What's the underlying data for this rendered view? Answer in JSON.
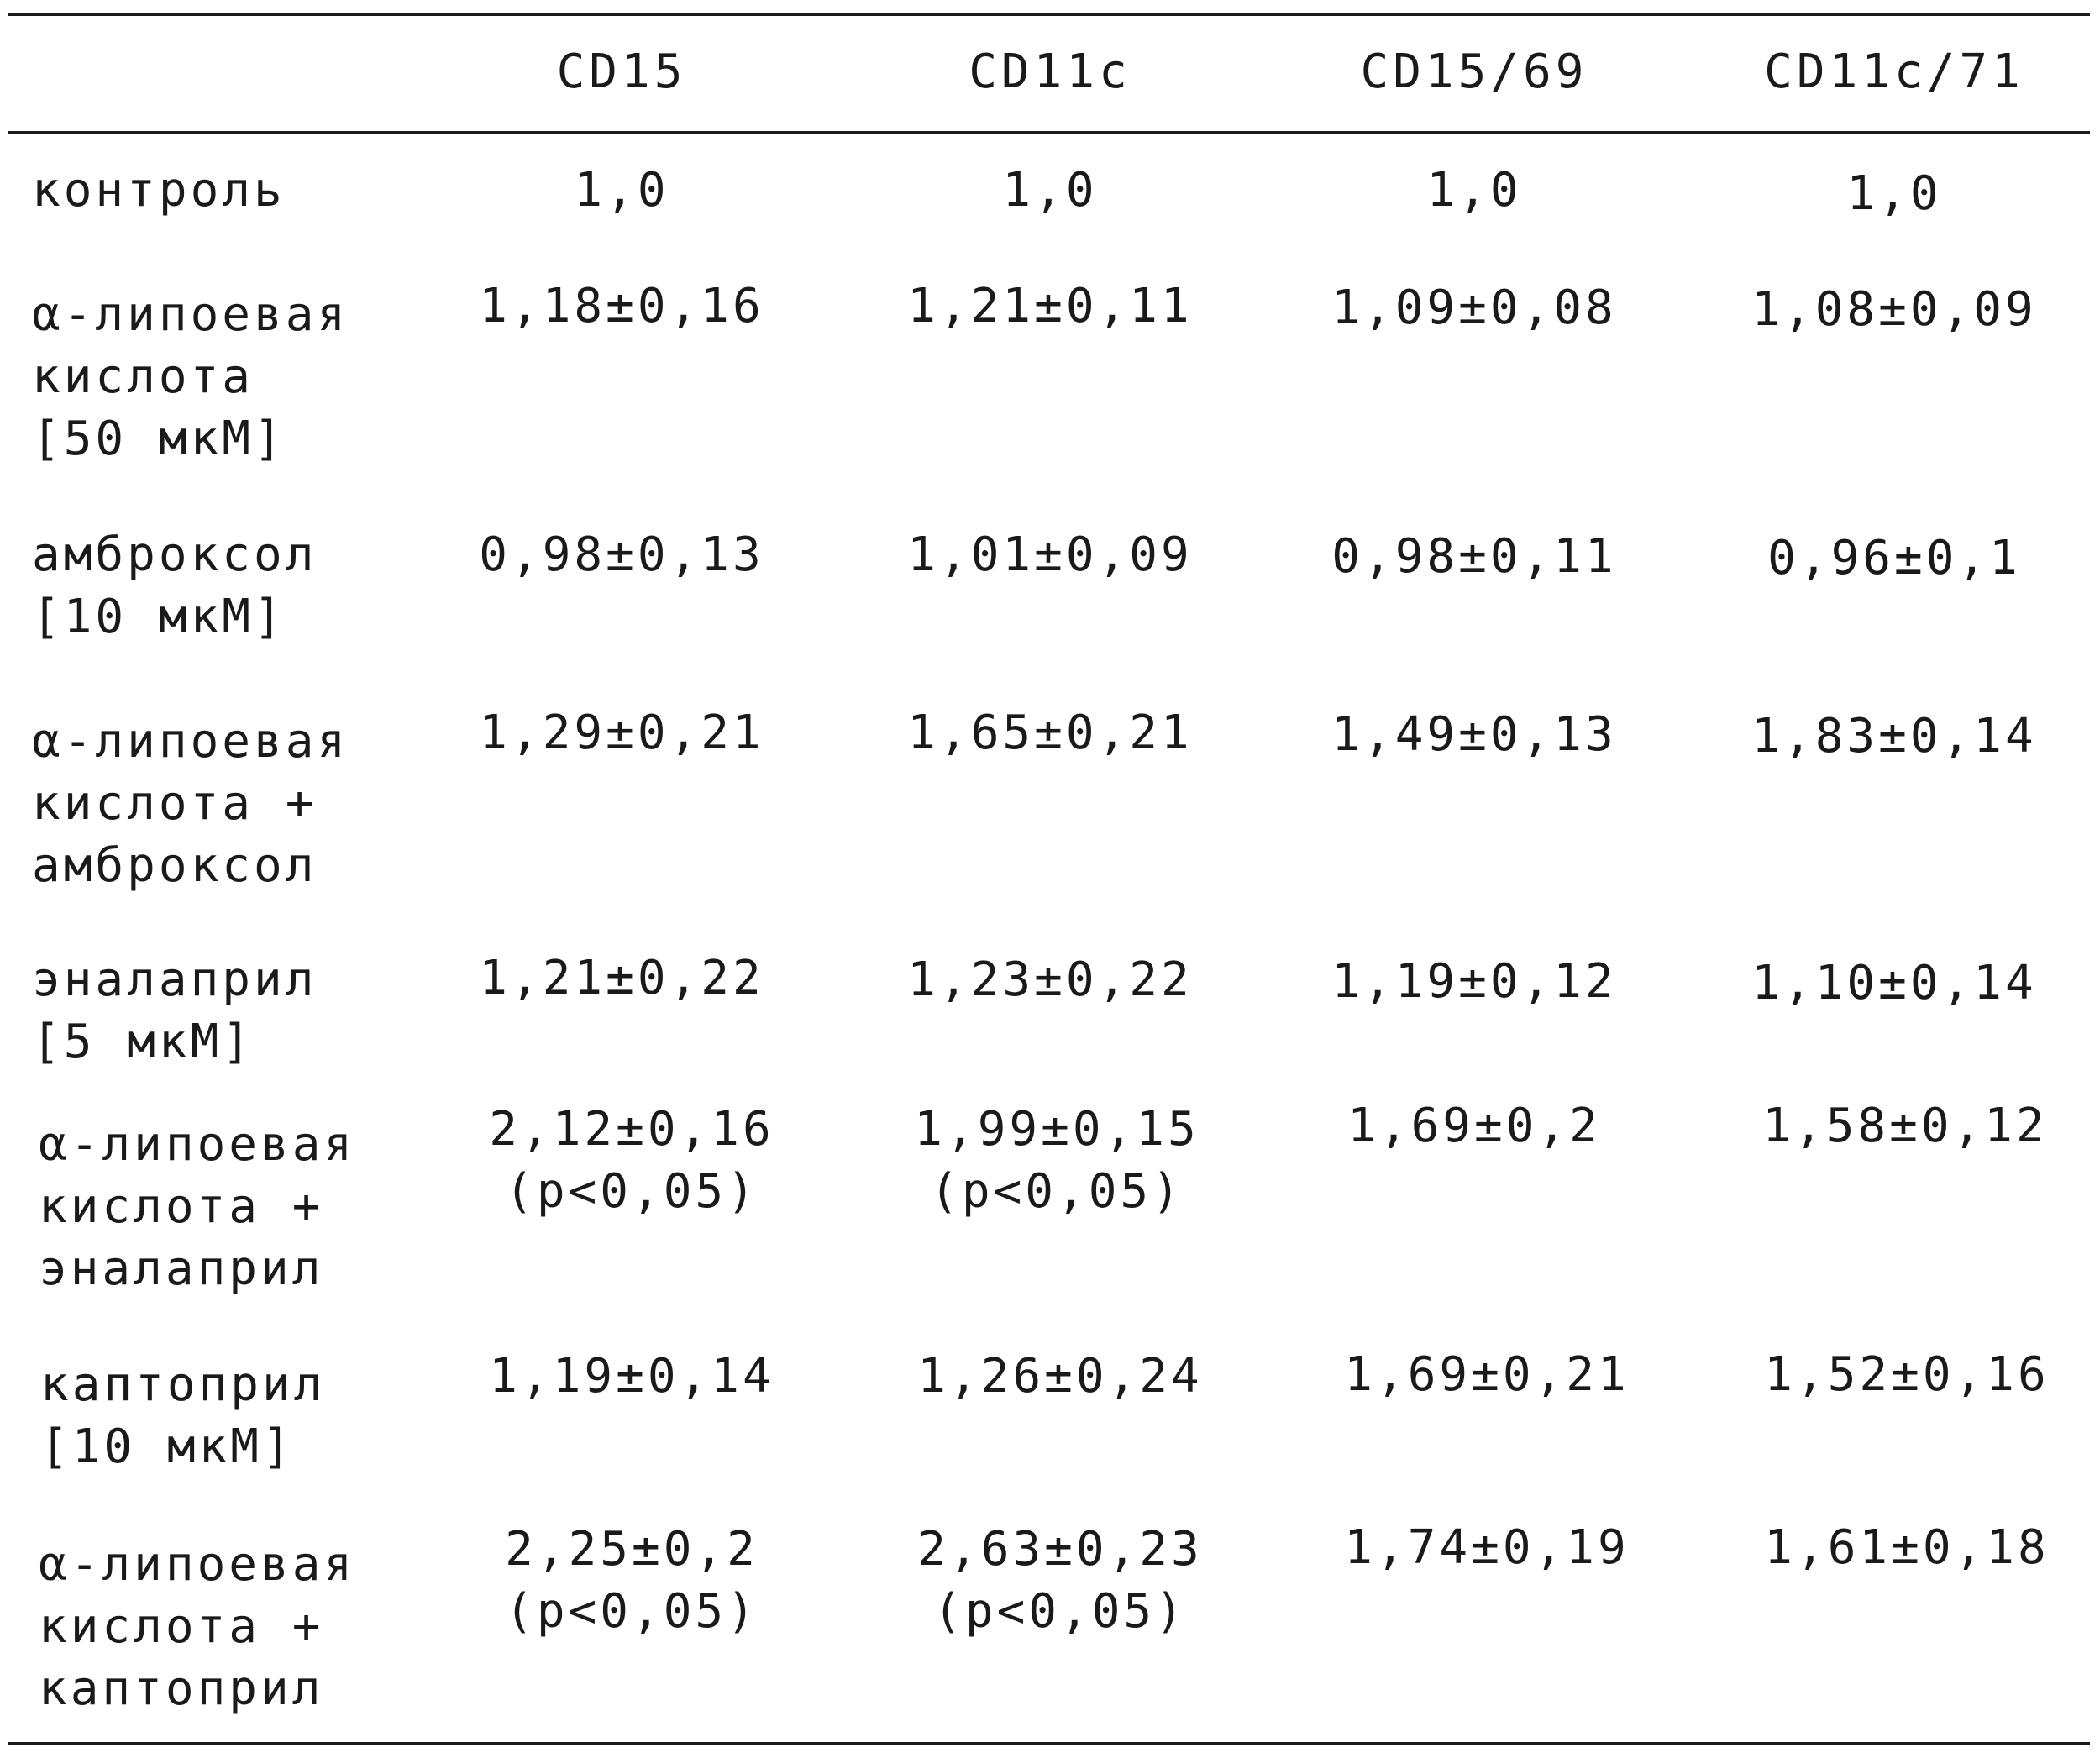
{
  "table": {
    "headers": [
      "CD15",
      "CD11c",
      "CD15/69",
      "CD11c/71"
    ],
    "rows": [
      {
        "label": "контроль",
        "values": [
          "1,0",
          "1,0",
          "1,0",
          "1,0"
        ]
      },
      {
        "label": "α-липоевая\nкислота\n[50 мкМ]",
        "values": [
          "1,18±0,16",
          "1,21±0,11",
          "1,09±0,08",
          "1,08±0,09"
        ]
      },
      {
        "label": "амброксол\n[10 мкМ]",
        "values": [
          "0,98±0,13",
          "1,01±0,09",
          "0,98±0,11",
          "0,96±0,1"
        ]
      },
      {
        "label": "α-липоевая\nкислота +\nамброксол",
        "values": [
          "1,29±0,21",
          "1,65±0,21",
          "1,49±0,13",
          "1,83±0,14"
        ]
      },
      {
        "label": "эналаприл\n[5 мкМ]",
        "values": [
          "1,21±0,22",
          "1,23±0,22",
          "1,19±0,12",
          "1,10±0,14"
        ]
      },
      {
        "label": "α-липоевая\nкислота +\nэналаприл",
        "values": [
          "2,12±0,16\n(p<0,05)",
          "1,99±0,15\n(p<0,05)",
          "1,69±0,2",
          "1,58±0,12"
        ]
      },
      {
        "label": "каптоприл\n[10 мкМ]",
        "values": [
          "1,19±0,14",
          "1,26±0,24",
          "1,69±0,21",
          "1,52±0,16"
        ]
      },
      {
        "label": "α-липоевая\nкислота +\nкаптоприл",
        "values": [
          "2,25±0,2\n(p<0,05)",
          "2,63±0,23\n(p<0,05)",
          "1,74±0,19",
          "1,61±0,18"
        ]
      }
    ]
  }
}
